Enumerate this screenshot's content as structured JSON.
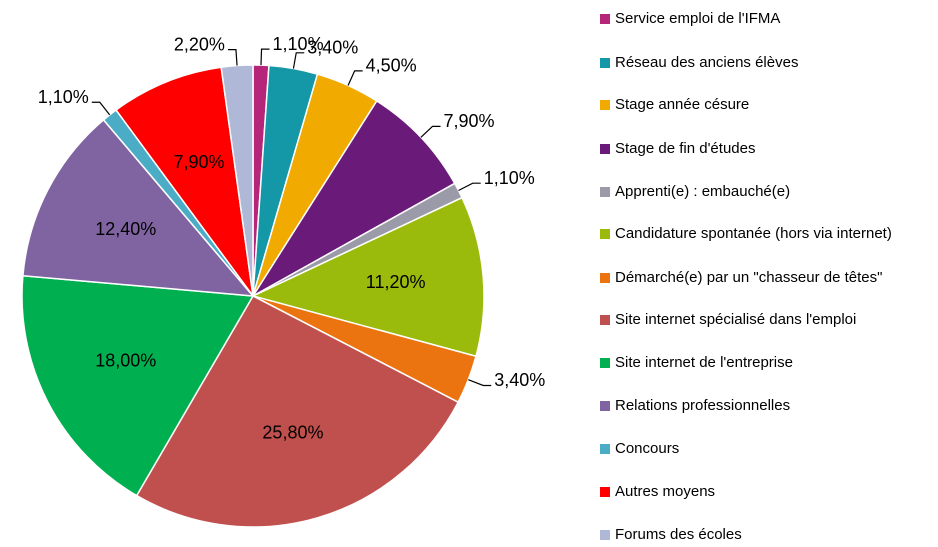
{
  "chart_data": {
    "type": "pie",
    "categories": [
      "Service emploi de l'IFMA",
      "Réseau des anciens élèves",
      "Stage année césure",
      "Stage de fin d'études",
      "Apprenti(e) : embauché(e)",
      "Candidature spontanée (hors via internet)",
      "Démarché(e) par un \"chasseur de têtes\"",
      "Site internet spécialisé dans l'emploi",
      "Site internet de l'entreprise",
      "Relations professionnelles",
      "Concours",
      "Autres moyens",
      "Forums des écoles"
    ],
    "values": [
      1.1,
      3.4,
      4.5,
      7.9,
      1.1,
      11.2,
      3.4,
      25.8,
      18.0,
      12.4,
      1.1,
      7.9,
      2.2
    ],
    "value_labels": [
      "1,10%",
      "3,40%",
      "4,50%",
      "7,90%",
      "1,10%",
      "11,20%",
      "3,40%",
      "25,80%",
      "18,00%",
      "12,40%",
      "1,10%",
      "7,90%",
      "2,20%"
    ],
    "colors": [
      "#b5267a",
      "#1497a6",
      "#f0aa00",
      "#6a1b7a",
      "#9a9aa8",
      "#9bbb0c",
      "#ec7410",
      "#c0504d",
      "#00b050",
      "#8064a2",
      "#4bacc6",
      "#ff0000",
      "#b0b8d8"
    ],
    "legend": "right"
  }
}
